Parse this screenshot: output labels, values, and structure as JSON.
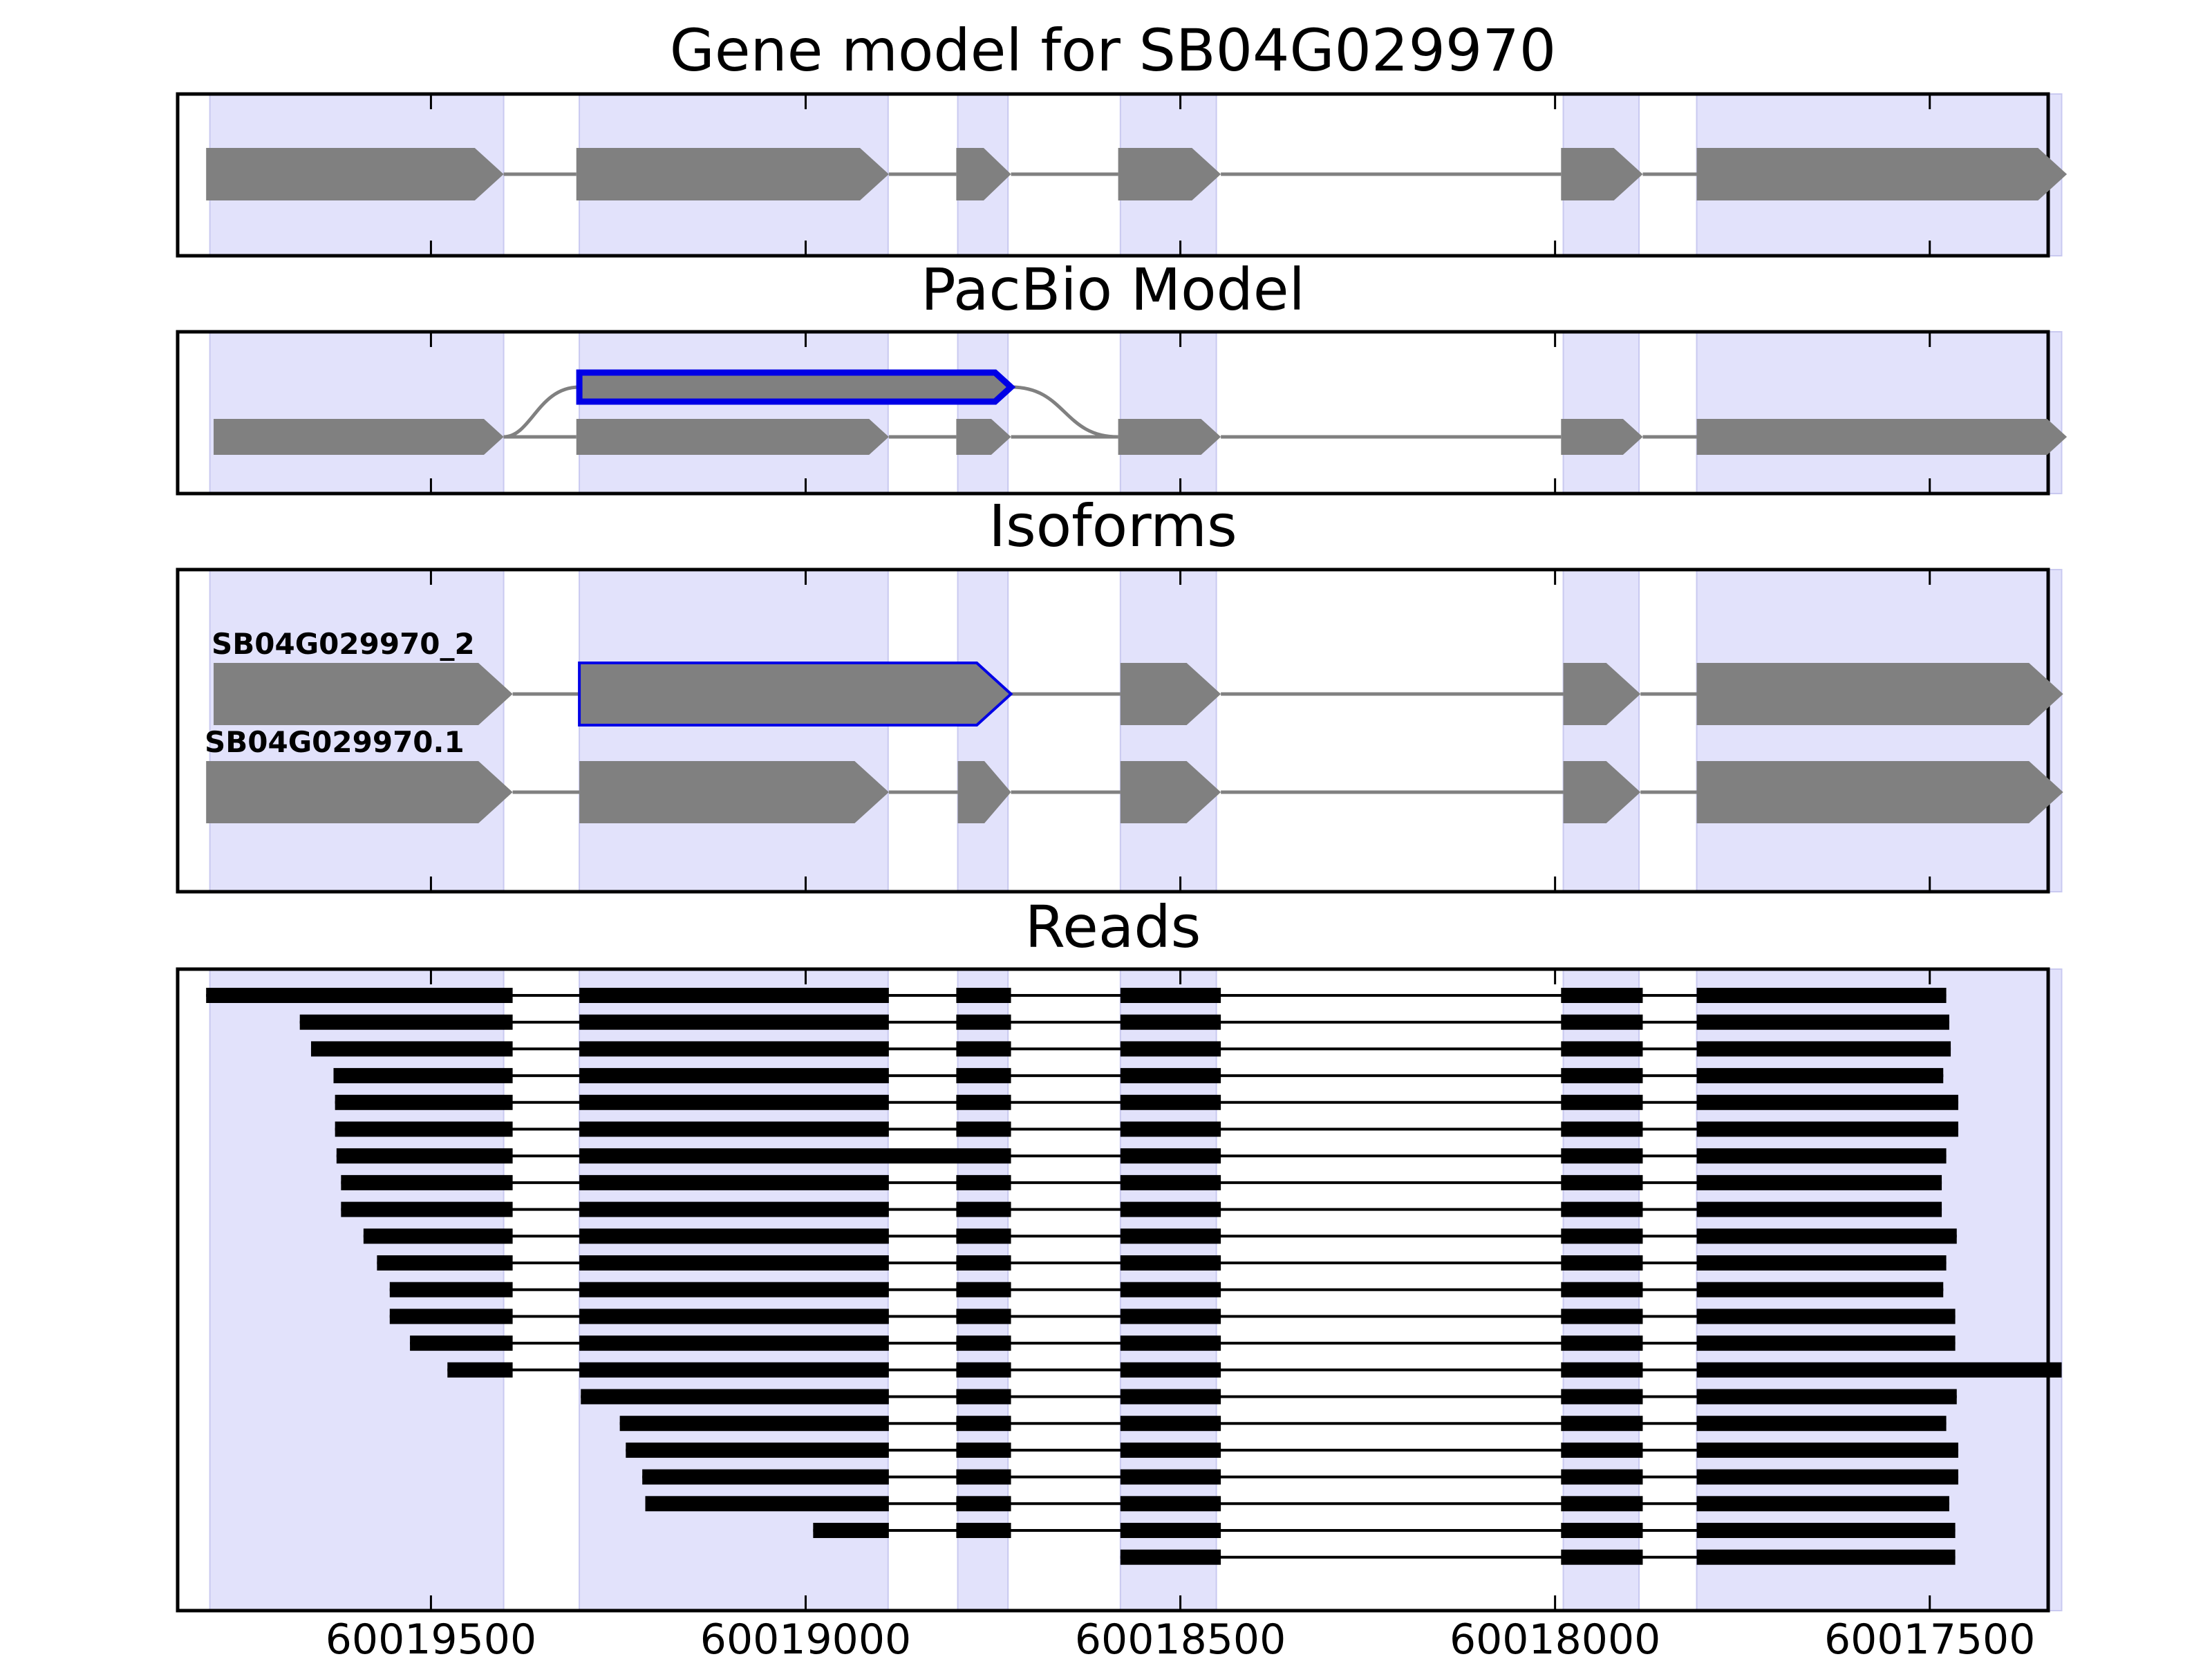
{
  "chart_data": {
    "type": "gene-structure",
    "axis": {
      "direction": "reversed",
      "xlim": [
        60019838,
        60017342
      ],
      "ticks": [
        60019500,
        60019000,
        60018500,
        60018000,
        60017500
      ],
      "tick_labels": [
        "60019500",
        "60019000",
        "60018500",
        "60018000",
        "60017500"
      ]
    },
    "shaded_regions": [
      [
        60019795,
        60019403
      ],
      [
        60019302,
        60018890
      ],
      [
        60018797,
        60018730
      ],
      [
        60018580,
        60018452
      ],
      [
        60017989,
        60017888
      ],
      [
        60017811,
        60017324
      ]
    ],
    "colors": {
      "shade": "#e2e2fb",
      "shade_edge": "#c9c9f0",
      "exon": "#808080",
      "intron": "#808080",
      "highlight": "#0000e6",
      "read": "#000000"
    },
    "panels": [
      {
        "title": "Gene model for SB04G029970",
        "tracks": [
          {
            "label": "",
            "exons": [
              [
                60019800,
                60019403
              ],
              [
                60019306,
                60018889
              ],
              [
                60018799,
                60018726
              ],
              [
                60018583,
                60018446
              ],
              [
                60017992,
                60017883
              ],
              [
                60017811,
                60017317
              ]
            ]
          }
        ]
      },
      {
        "title": "PacBio Model",
        "tracks": [
          {
            "label": "",
            "highlight": true,
            "exons": [
              [
                60019302,
                60018726
              ]
            ]
          },
          {
            "label": "",
            "exons": [
              [
                60019790,
                60019403
              ],
              [
                60019306,
                60018889
              ],
              [
                60018799,
                60018726
              ],
              [
                60018583,
                60018446
              ],
              [
                60017992,
                60017883
              ],
              [
                60017811,
                60017317
              ]
            ]
          }
        ],
        "bypass": {
          "from": 60019403,
          "to": 60018583
        }
      },
      {
        "title": "Isoforms",
        "tracks": [
          {
            "label": "SB04G029970_2",
            "exons": [
              [
                60019790,
                60019391
              ],
              [
                60019302,
                60018726
              ],
              [
                60018580,
                60018446
              ],
              [
                60017989,
                60017886
              ],
              [
                60017811,
                60017322
              ]
            ],
            "highlight_exon": 1
          },
          {
            "label": "SB04G029970.1",
            "exons": [
              [
                60019800,
                60019391
              ],
              [
                60019302,
                60018889
              ],
              [
                60018797,
                60018726
              ],
              [
                60018580,
                60018446
              ],
              [
                60017989,
                60017886
              ],
              [
                60017811,
                60017322
              ]
            ]
          }
        ]
      },
      {
        "title": "Reads",
        "reads": [
          {
            "start": 60019800,
            "end": 60017478,
            "skip_exon3": false
          },
          {
            "start": 60019675,
            "end": 60017474,
            "skip_exon3": false
          },
          {
            "start": 60019660,
            "end": 60017472,
            "skip_exon3": false
          },
          {
            "start": 60019630,
            "end": 60017482,
            "skip_exon3": false
          },
          {
            "start": 60019628,
            "end": 60017462,
            "skip_exon3": false
          },
          {
            "start": 60019628,
            "end": 60017462,
            "skip_exon3": false
          },
          {
            "start": 60019626,
            "end": 60017478,
            "skip_exon3": true
          },
          {
            "start": 60019620,
            "end": 60017484,
            "skip_exon3": false
          },
          {
            "start": 60019620,
            "end": 60017484,
            "skip_exon3": false
          },
          {
            "start": 60019590,
            "end": 60017464,
            "skip_exon3": false
          },
          {
            "start": 60019572,
            "end": 60017478,
            "skip_exon3": false
          },
          {
            "start": 60019555,
            "end": 60017482,
            "skip_exon3": false
          },
          {
            "start": 60019555,
            "end": 60017466,
            "skip_exon3": false
          },
          {
            "start": 60019528,
            "end": 60017466,
            "skip_exon3": false
          },
          {
            "start": 60019478,
            "end": 60017324,
            "skip_exon3": false
          },
          {
            "start": 60019300,
            "end": 60017464,
            "skip_exon3": false
          },
          {
            "start": 60019248,
            "end": 60017478,
            "skip_exon3": false
          },
          {
            "start": 60019240,
            "end": 60017462,
            "skip_exon3": false
          },
          {
            "start": 60019218,
            "end": 60017462,
            "skip_exon3": false
          },
          {
            "start": 60019214,
            "end": 60017474,
            "skip_exon3": false
          },
          {
            "start": 60018990,
            "end": 60017466,
            "skip_exon3": false
          },
          {
            "start": 60018580,
            "end": 60017466,
            "skip_exon3": false
          }
        ]
      }
    ]
  }
}
